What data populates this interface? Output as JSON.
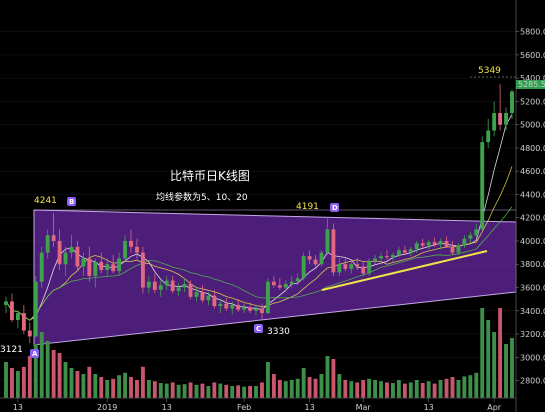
{
  "chart_data": {
    "type": "candlestick",
    "title": "比特币日K线图",
    "subtitle": "均线参数为5、10、20",
    "colors": {
      "background": "#000000",
      "up": "#3fa34d",
      "down": "#e0687f",
      "triangle_fill": "#6a2aa8",
      "triangle_stroke": "#c7a7e8",
      "trendline": "#f2e24a",
      "volume_up": "#3d8f4a",
      "volume_down": "#c9566c",
      "ma_5": "#ffffff",
      "ma_10": "#f2e24a",
      "ma_20": "#52c24a"
    },
    "y_axis": {
      "ticks": [
        "5800.00",
        "5600.00",
        "5400.00",
        "5200.00",
        "5000.00",
        "4800.00",
        "4600.00",
        "4400.00",
        "4200.00",
        "4000.00",
        "3800.00",
        "3600.00",
        "3400.00",
        "3200.00",
        "3000.00",
        "2800.00"
      ],
      "range": [
        2650,
        5900
      ]
    },
    "x_axis": {
      "ticks": [
        "13",
        "2019",
        "13",
        "Feb",
        "13",
        "Mar",
        "13",
        "Apr"
      ]
    },
    "current_price": "5285.5",
    "annotations": [
      {
        "text": "4241",
        "color": "#f2e24a"
      },
      {
        "text": "4191",
        "color": "#f2e24a"
      },
      {
        "text": "3330",
        "color": "#ffffff"
      },
      {
        "text": "3121",
        "color": "#ffffff"
      },
      {
        "text": "5349",
        "color": "#f2e24a"
      }
    ],
    "markers": [
      "A",
      "B",
      "C",
      "D"
    ],
    "ohlc": [
      [
        3450,
        3520,
        3380,
        3480
      ],
      [
        3480,
        3550,
        3300,
        3320
      ],
      [
        3320,
        3400,
        3250,
        3380
      ],
      [
        3380,
        3450,
        3200,
        3230
      ],
      [
        3230,
        3300,
        3121,
        3180
      ],
      [
        3180,
        3700,
        3170,
        3650
      ],
      [
        3650,
        3950,
        3600,
        3900
      ],
      [
        3900,
        4100,
        3850,
        4050
      ],
      [
        4050,
        4241,
        3950,
        4000
      ],
      [
        4000,
        4100,
        3750,
        3800
      ],
      [
        3800,
        3950,
        3700,
        3900
      ],
      [
        3900,
        4050,
        3850,
        3950
      ],
      [
        3950,
        4000,
        3750,
        3780
      ],
      [
        3780,
        3900,
        3700,
        3850
      ],
      [
        3850,
        3950,
        3650,
        3700
      ],
      [
        3700,
        3850,
        3600,
        3820
      ],
      [
        3820,
        3900,
        3720,
        3750
      ],
      [
        3750,
        3850,
        3700,
        3800
      ],
      [
        3800,
        3880,
        3720,
        3740
      ],
      [
        3740,
        3900,
        3700,
        3850
      ],
      [
        3850,
        4050,
        3820,
        4000
      ],
      [
        4000,
        4100,
        3900,
        3950
      ],
      [
        3950,
        4020,
        3850,
        3900
      ],
      [
        3900,
        3950,
        3550,
        3600
      ],
      [
        3600,
        3700,
        3550,
        3650
      ],
      [
        3650,
        3720,
        3550,
        3580
      ],
      [
        3580,
        3660,
        3520,
        3620
      ],
      [
        3620,
        3700,
        3580,
        3660
      ],
      [
        3660,
        3700,
        3550,
        3570
      ],
      [
        3570,
        3640,
        3530,
        3600
      ],
      [
        3600,
        3680,
        3560,
        3630
      ],
      [
        3630,
        3660,
        3500,
        3520
      ],
      [
        3520,
        3600,
        3480,
        3560
      ],
      [
        3560,
        3620,
        3470,
        3490
      ],
      [
        3490,
        3560,
        3450,
        3530
      ],
      [
        3530,
        3580,
        3420,
        3440
      ],
      [
        3440,
        3500,
        3380,
        3460
      ],
      [
        3460,
        3510,
        3400,
        3420
      ],
      [
        3420,
        3480,
        3370,
        3450
      ],
      [
        3450,
        3500,
        3390,
        3410
      ],
      [
        3410,
        3460,
        3380,
        3430
      ],
      [
        3430,
        3470,
        3380,
        3400
      ],
      [
        3400,
        3450,
        3360,
        3420
      ],
      [
        3420,
        3460,
        3330,
        3380
      ],
      [
        3380,
        3680,
        3370,
        3650
      ],
      [
        3650,
        3700,
        3600,
        3620
      ],
      [
        3620,
        3680,
        3580,
        3600
      ],
      [
        3600,
        3660,
        3560,
        3630
      ],
      [
        3630,
        3700,
        3600,
        3650
      ],
      [
        3650,
        3720,
        3620,
        3680
      ],
      [
        3680,
        3900,
        3660,
        3870
      ],
      [
        3870,
        3920,
        3800,
        3840
      ],
      [
        3840,
        3880,
        3780,
        3800
      ],
      [
        3800,
        3920,
        3780,
        3900
      ],
      [
        3900,
        4191,
        3880,
        4100
      ],
      [
        4100,
        4150,
        3700,
        3730
      ],
      [
        3730,
        3850,
        3700,
        3800
      ],
      [
        3800,
        3850,
        3740,
        3760
      ],
      [
        3760,
        3830,
        3720,
        3800
      ],
      [
        3800,
        3850,
        3750,
        3780
      ],
      [
        3780,
        3820,
        3700,
        3720
      ],
      [
        3720,
        3850,
        3700,
        3830
      ],
      [
        3830,
        3880,
        3800,
        3850
      ],
      [
        3850,
        3900,
        3820,
        3870
      ],
      [
        3870,
        3920,
        3840,
        3860
      ],
      [
        3860,
        3900,
        3820,
        3880
      ],
      [
        3880,
        3950,
        3860,
        3920
      ],
      [
        3920,
        3960,
        3880,
        3900
      ],
      [
        3900,
        3950,
        3870,
        3930
      ],
      [
        3930,
        4000,
        3900,
        3980
      ],
      [
        3980,
        4020,
        3940,
        3960
      ],
      [
        3960,
        4010,
        3930,
        3990
      ],
      [
        3990,
        4030,
        3950,
        3970
      ],
      [
        3970,
        4020,
        3930,
        4000
      ],
      [
        4000,
        4040,
        3940,
        3950
      ],
      [
        3950,
        4000,
        3880,
        3900
      ],
      [
        3900,
        3980,
        3880,
        3960
      ],
      [
        3960,
        4050,
        3940,
        4020
      ],
      [
        4020,
        4080,
        3980,
        4050
      ],
      [
        4050,
        4150,
        4030,
        4100
      ],
      [
        4100,
        4900,
        4090,
        4850
      ],
      [
        4850,
        5050,
        4800,
        4950
      ],
      [
        4950,
        5200,
        4900,
        5100
      ],
      [
        5100,
        5349,
        4950,
        5000
      ],
      [
        5000,
        5150,
        4950,
        5100
      ],
      [
        5100,
        5300,
        5050,
        5285.5
      ]
    ],
    "volume": [
      [
        600,
        1
      ],
      [
        500,
        0
      ],
      [
        450,
        1
      ],
      [
        520,
        0
      ],
      [
        700,
        0
      ],
      [
        900,
        1
      ],
      [
        1100,
        1
      ],
      [
        950,
        1
      ],
      [
        800,
        0
      ],
      [
        750,
        0
      ],
      [
        600,
        1
      ],
      [
        500,
        1
      ],
      [
        450,
        0
      ],
      [
        400,
        1
      ],
      [
        520,
        0
      ],
      [
        400,
        1
      ],
      [
        350,
        0
      ],
      [
        300,
        1
      ],
      [
        320,
        0
      ],
      [
        380,
        1
      ],
      [
        420,
        1
      ],
      [
        350,
        0
      ],
      [
        300,
        0
      ],
      [
        520,
        0
      ],
      [
        300,
        1
      ],
      [
        280,
        0
      ],
      [
        250,
        1
      ],
      [
        240,
        1
      ],
      [
        260,
        0
      ],
      [
        220,
        1
      ],
      [
        230,
        1
      ],
      [
        260,
        0
      ],
      [
        220,
        1
      ],
      [
        240,
        0
      ],
      [
        200,
        1
      ],
      [
        260,
        0
      ],
      [
        240,
        1
      ],
      [
        220,
        0
      ],
      [
        200,
        1
      ],
      [
        210,
        0
      ],
      [
        190,
        1
      ],
      [
        200,
        0
      ],
      [
        200,
        1
      ],
      [
        260,
        0
      ],
      [
        600,
        1
      ],
      [
        400,
        0
      ],
      [
        300,
        0
      ],
      [
        280,
        1
      ],
      [
        300,
        1
      ],
      [
        320,
        1
      ],
      [
        500,
        1
      ],
      [
        350,
        0
      ],
      [
        320,
        0
      ],
      [
        400,
        1
      ],
      [
        700,
        1
      ],
      [
        650,
        0
      ],
      [
        400,
        1
      ],
      [
        300,
        0
      ],
      [
        280,
        1
      ],
      [
        260,
        0
      ],
      [
        300,
        0
      ],
      [
        320,
        1
      ],
      [
        300,
        1
      ],
      [
        280,
        1
      ],
      [
        260,
        0
      ],
      [
        250,
        1
      ],
      [
        300,
        1
      ],
      [
        240,
        0
      ],
      [
        260,
        1
      ],
      [
        300,
        1
      ],
      [
        250,
        0
      ],
      [
        280,
        1
      ],
      [
        240,
        0
      ],
      [
        300,
        1
      ],
      [
        320,
        0
      ],
      [
        350,
        0
      ],
      [
        300,
        1
      ],
      [
        360,
        1
      ],
      [
        380,
        1
      ],
      [
        420,
        1
      ],
      [
        1500,
        1
      ],
      [
        1300,
        1
      ],
      [
        1100,
        1
      ],
      [
        1500,
        0
      ],
      [
        900,
        1
      ],
      [
        1000,
        1
      ]
    ]
  }
}
